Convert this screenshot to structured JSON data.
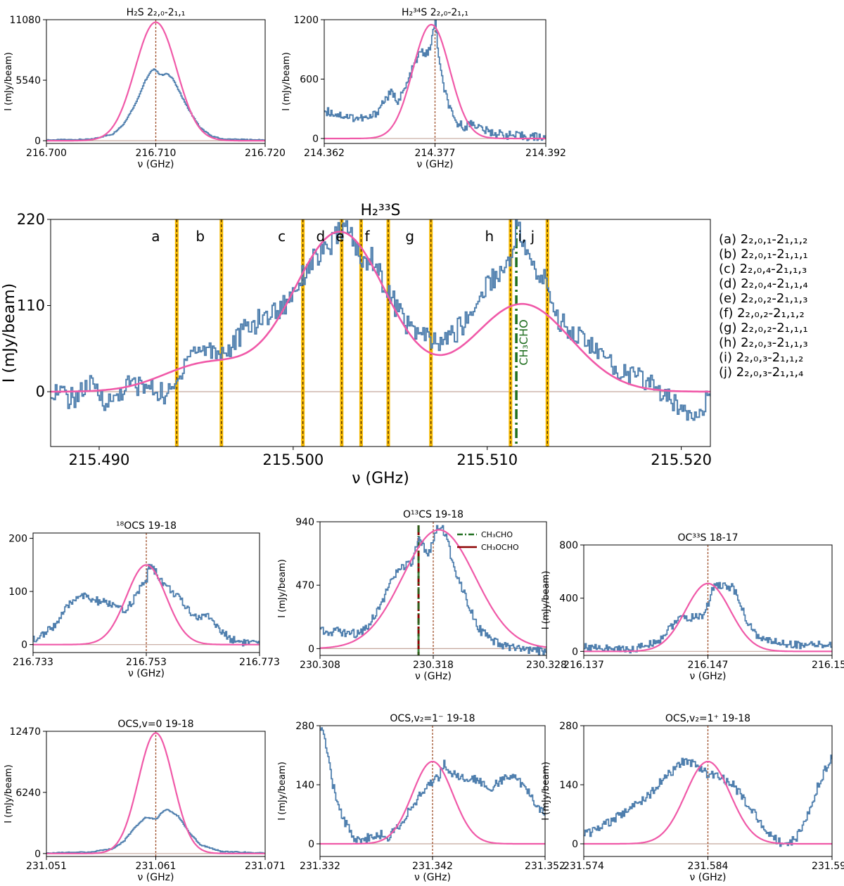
{
  "figure": {
    "ylabel": "I (mJy/beam)",
    "xlabel": "ν (GHz)"
  },
  "transitions_legend": [
    "(a) 2₂,₀,₁-2₁,₁,₂",
    "(b) 2₂,₀,₁-2₁,₁,₁",
    "(c) 2₂,₀,₄-2₁,₁,₃",
    "(d) 2₂,₀,₄-2₁,₁,₄",
    "(e) 2₂,₀,₂-2₁,₁,₃",
    "(f) 2₂,₀,₂-2₁,₁,₂",
    "(g) 2₂,₀,₂-2₁,₁,₁",
    "(h) 2₂,₀,₃-2₁,₁,₃",
    "(i) 2₂,₀,₃-2₁,₁,₂",
    "(j) 2₂,₀,₃-2₁,₁,₄"
  ],
  "colors": {
    "observed": "#4f7fae",
    "model": "#f059a8",
    "zero_line": "#c4a69c",
    "line_marker": "#a0522d",
    "hfs_band": "#f5b800",
    "ch3cho": "#1f6e1f",
    "ch3ocho": "#8b0000"
  },
  "chart_data": [
    {
      "id": "h2s",
      "type": "line",
      "title": "H₂S 2₂,₀-2₁,₁",
      "xlim": [
        216.7,
        216.72
      ],
      "ylim": [
        -250,
        11080
      ],
      "xticks": [
        "216.700",
        "216.710",
        "216.720"
      ],
      "yticks": [
        "0",
        "5540",
        "11080"
      ],
      "line_markers": [
        216.71
      ],
      "model": {
        "center": 216.71,
        "amp": 10850,
        "sigma": 0.0019
      },
      "series": [
        {
          "role": "observed",
          "x": [
            216.7,
            216.704,
            216.706,
            216.707,
            216.708,
            216.7085,
            216.709,
            216.7095,
            216.7098,
            216.7103,
            216.7106,
            216.711,
            216.7115,
            216.712,
            216.713,
            216.714,
            216.715,
            216.716,
            216.72
          ],
          "values": [
            60,
            120,
            600,
            1500,
            3200,
            4300,
            5500,
            6300,
            6600,
            6100,
            6000,
            6150,
            5700,
            4700,
            2800,
            1200,
            450,
            150,
            50
          ]
        }
      ]
    },
    {
      "id": "h2s34",
      "type": "line",
      "title": "H₂³⁴S 2₂,₀-2₁,₁",
      "xlim": [
        214.362,
        214.392
      ],
      "ylim": [
        -50,
        1200
      ],
      "xticks": [
        "214.362",
        "214.377",
        "214.392"
      ],
      "yticks": [
        "0",
        "600",
        "1200"
      ],
      "line_markers": [
        214.377
      ],
      "model": {
        "center": 214.3765,
        "amp": 1150,
        "sigma": 0.0025
      },
      "series": [
        {
          "role": "observed",
          "x": [
            214.362,
            214.364,
            214.366,
            214.368,
            214.369,
            214.37,
            214.371,
            214.372,
            214.373,
            214.374,
            214.375,
            214.376,
            214.3765,
            214.377,
            214.3775,
            214.378,
            214.379,
            214.3795,
            214.38,
            214.381,
            214.382,
            214.383,
            214.384,
            214.386,
            214.388,
            214.39,
            214.392
          ],
          "values": [
            280,
            240,
            210,
            200,
            260,
            380,
            460,
            380,
            520,
            720,
            880,
            850,
            1000,
            1180,
            780,
            550,
            290,
            180,
            150,
            120,
            160,
            110,
            70,
            40,
            25,
            20,
            10
          ]
        }
      ]
    },
    {
      "id": "h2s33",
      "type": "line",
      "title": "H₂³³S",
      "xlim": [
        215.4875,
        215.5215
      ],
      "ylim": [
        -70,
        220
      ],
      "xticks": [
        "215.490",
        "215.500",
        "215.510",
        "215.520"
      ],
      "yticks": [
        "0",
        "110",
        "220"
      ],
      "hfs_lines": [
        {
          "freq": 215.494,
          "label": "a"
        },
        {
          "freq": 215.4963,
          "label": "b"
        },
        {
          "freq": 215.5005,
          "label": "c"
        },
        {
          "freq": 215.5025,
          "label": "d"
        },
        {
          "freq": 215.5035,
          "label": "e"
        },
        {
          "freq": 215.5049,
          "label": "f"
        },
        {
          "freq": 215.5071,
          "label": "g"
        },
        {
          "freq": 215.5112,
          "label": "h"
        },
        {
          "freq": 215.5131,
          "label": "i, j"
        }
      ],
      "contaminant_lines": [
        {
          "freq": 215.5115,
          "label": "CH₃CHO"
        }
      ],
      "model": {
        "gaussians": [
          {
            "center": 215.4955,
            "amp": 35,
            "sigma": 0.0022
          },
          {
            "center": 215.5024,
            "amp": 204,
            "sigma": 0.0024
          },
          {
            "center": 215.5118,
            "amp": 112,
            "sigma": 0.0025
          }
        ]
      },
      "series": [
        {
          "role": "observed",
          "x": [
            215.4875,
            215.4885,
            215.4895,
            215.4905,
            215.4915,
            215.4925,
            215.4935,
            215.494,
            215.4945,
            215.4955,
            215.4965,
            215.4975,
            215.4985,
            215.4995,
            215.5,
            215.5005,
            215.501,
            215.5015,
            215.502,
            215.5025,
            215.503,
            215.5035,
            215.504,
            215.5045,
            215.505,
            215.5055,
            215.506,
            215.5065,
            215.507,
            215.5075,
            215.508,
            215.5085,
            215.509,
            215.5095,
            215.51,
            215.5105,
            215.511,
            215.5112,
            215.5115,
            215.512,
            215.5125,
            215.5131,
            215.5135,
            215.5145,
            215.5155,
            215.5165,
            215.5175,
            215.5185,
            215.5195,
            215.5205,
            215.5215
          ],
          "values": [
            5,
            -10,
            8,
            -15,
            10,
            5,
            -5,
            10,
            50,
            55,
            50,
            80,
            95,
            110,
            130,
            150,
            170,
            175,
            190,
            210,
            200,
            160,
            175,
            145,
            120,
            100,
            80,
            75,
            65,
            60,
            70,
            80,
            95,
            115,
            140,
            150,
            160,
            175,
            215,
            175,
            150,
            140,
            95,
            75,
            55,
            30,
            20,
            10,
            -15,
            -25,
            -10
          ]
        }
      ]
    },
    {
      "id": "o18cs",
      "type": "line",
      "title": "¹⁸OCS 19-18",
      "xlim": [
        216.733,
        216.773
      ],
      "ylim": [
        -15,
        210
      ],
      "xticks": [
        "216.733",
        "216.753",
        "216.773"
      ],
      "yticks": [
        "0",
        "100",
        "200"
      ],
      "line_markers": [
        216.753
      ],
      "model": {
        "center": 216.753,
        "amp": 150,
        "sigma": 0.0035
      },
      "series": [
        {
          "role": "observed",
          "x": [
            216.733,
            216.735,
            216.737,
            216.739,
            216.741,
            216.743,
            216.745,
            216.747,
            216.749,
            216.751,
            216.753,
            216.7535,
            216.754,
            216.756,
            216.758,
            216.76,
            216.762,
            216.764,
            216.766,
            216.768,
            216.77,
            216.773
          ],
          "values": [
            10,
            20,
            40,
            70,
            95,
            85,
            80,
            75,
            60,
            90,
            125,
            150,
            145,
            115,
            95,
            70,
            50,
            55,
            25,
            10,
            5,
            0
          ]
        }
      ]
    },
    {
      "id": "o13cs",
      "type": "line",
      "title": "O¹³CS 19-18",
      "xlim": [
        230.308,
        230.328
      ],
      "ylim": [
        -50,
        940
      ],
      "xticks": [
        "230.308",
        "230.318",
        "230.328"
      ],
      "yticks": [
        "0",
        "470",
        "940"
      ],
      "line_markers": [
        230.318
      ],
      "contaminant_lines": [
        {
          "freq": 230.3167,
          "label": "CH₃CHO"
        },
        {
          "freq": 230.3167,
          "label": "CH₃OCHO"
        }
      ],
      "legend": [
        "CH₃CHO",
        "CH₃OCHO"
      ],
      "model": {
        "center": 230.3185,
        "amp": 880,
        "sigma": 0.0032
      },
      "series": [
        {
          "role": "observed",
          "x": [
            230.308,
            230.309,
            230.31,
            230.311,
            230.312,
            230.313,
            230.314,
            230.315,
            230.316,
            230.3167,
            230.3175,
            230.318,
            230.3185,
            230.319,
            230.3195,
            230.32,
            230.321,
            230.322,
            230.323,
            230.324,
            230.325,
            230.326,
            230.328
          ],
          "values": [
            140,
            130,
            120,
            110,
            150,
            280,
            450,
            600,
            620,
            800,
            700,
            820,
            920,
            850,
            700,
            560,
            350,
            150,
            60,
            20,
            10,
            -15,
            -20
          ]
        }
      ]
    },
    {
      "id": "oc33s",
      "type": "line",
      "title": "OC³³S 18-17",
      "xlim": [
        216.137,
        216.157
      ],
      "ylim": [
        -30,
        800
      ],
      "xticks": [
        "216.137",
        "216.147",
        "216.157"
      ],
      "yticks": [
        "0",
        "400",
        "800"
      ],
      "line_markers": [
        216.147
      ],
      "model": {
        "center": 216.147,
        "amp": 510,
        "sigma": 0.0018
      },
      "series": [
        {
          "role": "observed",
          "x": [
            216.137,
            216.139,
            216.141,
            216.143,
            216.1445,
            216.1455,
            216.1465,
            216.147,
            216.1475,
            216.148,
            216.149,
            216.15,
            216.151,
            216.153,
            216.155,
            216.157
          ],
          "values": [
            40,
            20,
            15,
            80,
            240,
            250,
            270,
            350,
            520,
            490,
            480,
            250,
            100,
            60,
            45,
            50
          ]
        }
      ]
    },
    {
      "id": "ocs_v0",
      "type": "line",
      "title": "OCS,v=0 19-18",
      "xlim": [
        231.051,
        231.071
      ],
      "ylim": [
        -300,
        12470
      ],
      "xticks": [
        "231.051",
        "231.061",
        "231.071"
      ],
      "yticks": [
        "0",
        "6240",
        "12470"
      ],
      "line_markers": [
        231.061
      ],
      "model": {
        "center": 231.061,
        "amp": 12300,
        "sigma": 0.0016
      },
      "series": [
        {
          "role": "observed",
          "x": [
            231.051,
            231.055,
            231.057,
            231.058,
            231.059,
            231.06,
            231.061,
            231.0615,
            231.062,
            231.063,
            231.064,
            231.065,
            231.067,
            231.071
          ],
          "values": [
            50,
            150,
            500,
            1200,
            2600,
            3700,
            3500,
            4200,
            4500,
            3800,
            2200,
            900,
            200,
            50
          ]
        }
      ]
    },
    {
      "id": "ocs_v2m",
      "type": "line",
      "title": "OCS,v₂=1⁻ 19-18",
      "xlim": [
        231.332,
        231.352
      ],
      "ylim": [
        -30,
        280
      ],
      "xticks": [
        "231.332",
        "231.342",
        "231.352"
      ],
      "yticks": [
        "0",
        "140",
        "280"
      ],
      "line_markers": [
        231.342
      ],
      "model": {
        "center": 231.342,
        "amp": 195,
        "sigma": 0.0018
      },
      "series": [
        {
          "role": "observed",
          "x": [
            231.332,
            231.3325,
            231.333,
            231.334,
            231.335,
            231.336,
            231.337,
            231.338,
            231.339,
            231.34,
            231.341,
            231.342,
            231.3425,
            231.343,
            231.344,
            231.345,
            231.346,
            231.347,
            231.348,
            231.349,
            231.35,
            231.351,
            231.352
          ],
          "values": [
            280,
            230,
            150,
            60,
            15,
            10,
            25,
            15,
            45,
            80,
            120,
            150,
            160,
            190,
            160,
            150,
            155,
            130,
            150,
            160,
            140,
            100,
            70
          ]
        }
      ]
    },
    {
      "id": "ocs_v2p",
      "type": "line",
      "title": "OCS,v₂=1⁺ 19-18",
      "xlim": [
        231.574,
        231.594
      ],
      "ylim": [
        -30,
        280
      ],
      "xticks": [
        "231.574",
        "231.584",
        "231.594"
      ],
      "yticks": [
        "0",
        "140",
        "280"
      ],
      "line_markers": [
        231.584
      ],
      "model": {
        "center": 231.584,
        "amp": 195,
        "sigma": 0.0018
      },
      "series": [
        {
          "role": "observed",
          "x": [
            231.574,
            231.576,
            231.577,
            231.578,
            231.579,
            231.58,
            231.581,
            231.582,
            231.583,
            231.584,
            231.585,
            231.586,
            231.587,
            231.588,
            231.589,
            231.59,
            231.591,
            231.592,
            231.593,
            231.594
          ],
          "values": [
            20,
            50,
            70,
            90,
            110,
            140,
            170,
            195,
            190,
            165,
            155,
            140,
            100,
            60,
            20,
            0,
            10,
            70,
            150,
            210
          ]
        }
      ]
    }
  ]
}
